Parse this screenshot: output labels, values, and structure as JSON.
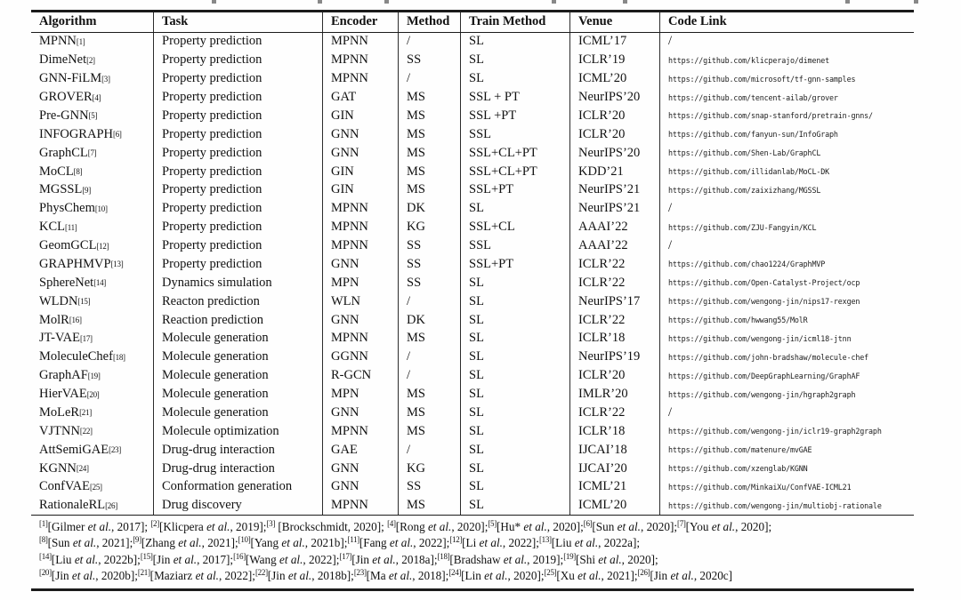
{
  "table": {
    "headers": [
      "Algorithm",
      "Task",
      "Encoder",
      "Method",
      "Train Method",
      "Venue",
      "Code Link"
    ],
    "rows": [
      {
        "algorithm": "MPNN",
        "ref": "[1]",
        "task": "Property prediction",
        "encoder": "MPNN",
        "method": "/",
        "train_method": "SL",
        "venue": "ICML’17",
        "code_link": "/"
      },
      {
        "algorithm": "DimeNet",
        "ref": "[2]",
        "task": "Property prediction",
        "encoder": "MPNN",
        "method": "SS",
        "train_method": "SL",
        "venue": "ICLR’19",
        "code_link": "https://github.com/klicperajo/dimenet"
      },
      {
        "algorithm": "GNN-FiLM",
        "ref": "[3]",
        "task": "Property prediction",
        "encoder": "MPNN",
        "method": "/",
        "train_method": "SL",
        "venue": "ICML’20",
        "code_link": "https://github.com/microsoft/tf-gnn-samples"
      },
      {
        "algorithm": "GROVER",
        "ref": "[4]",
        "task": "Property prediction",
        "encoder": "GAT",
        "method": "MS",
        "train_method": "SSL + PT",
        "venue": "NeurIPS’20",
        "code_link": "https://github.com/tencent-ailab/grover"
      },
      {
        "algorithm": "Pre-GNN",
        "ref": "[5]",
        "task": "Property prediction",
        "encoder": "GIN",
        "method": "MS",
        "train_method": "SSL +PT",
        "venue": "ICLR’20",
        "code_link": "https://github.com/snap-stanford/pretrain-gnns/"
      },
      {
        "algorithm": "INFOGRAPH",
        "ref": "[6]",
        "task": "Property prediction",
        "encoder": "GNN",
        "method": "MS",
        "train_method": "SSL",
        "venue": "ICLR’20",
        "code_link": "https://github.com/fanyun-sun/InfoGraph"
      },
      {
        "algorithm": "GraphCL",
        "ref": "[7]",
        "task": "Property prediction",
        "encoder": "GNN",
        "method": "MS",
        "train_method": "SSL+CL+PT",
        "venue": "NeurIPS’20",
        "code_link": "https://github.com/Shen-Lab/GraphCL"
      },
      {
        "algorithm": "MoCL",
        "ref": "[8]",
        "task": "Property prediction",
        "encoder": "GIN",
        "method": "MS",
        "train_method": "SSL+CL+PT",
        "venue": "KDD’21",
        "code_link": "https://github.com/illidanlab/MoCL-DK"
      },
      {
        "algorithm": "MGSSL",
        "ref": "[9]",
        "task": "Property prediction",
        "encoder": "GIN",
        "method": "MS",
        "train_method": "SSL+PT",
        "venue": "NeurIPS’21",
        "code_link": "https://github.com/zaixizhang/MGSSL"
      },
      {
        "algorithm": "PhysChem",
        "ref": "[10]",
        "task": "Property prediction",
        "encoder": "MPNN",
        "method": "DK",
        "train_method": "SL",
        "venue": "NeurIPS’21",
        "code_link": "/"
      },
      {
        "algorithm": "KCL",
        "ref": "[11]",
        "task": "Property prediction",
        "encoder": "MPNN",
        "method": "KG",
        "train_method": "SSL+CL",
        "venue": "AAAI’22",
        "code_link": "https://github.com/ZJU-Fangyin/KCL"
      },
      {
        "algorithm": "GeomGCL",
        "ref": "[12]",
        "task": "Property prediction",
        "encoder": "MPNN",
        "method": "SS",
        "train_method": "SSL",
        "venue": "AAAI’22",
        "code_link": "/"
      },
      {
        "algorithm": "GRAPHMVP",
        "ref": "[13]",
        "task": "Property prediction",
        "encoder": "GNN",
        "method": "SS",
        "train_method": "SSL+PT",
        "venue": "ICLR’22",
        "code_link": "https://github.com/chao1224/GraphMVP"
      },
      {
        "algorithm": "SphereNet",
        "ref": "[14]",
        "task": "Dynamics simulation",
        "encoder": "MPN",
        "method": "SS",
        "train_method": "SL",
        "venue": "ICLR’22",
        "code_link": "https://github.com/Open-Catalyst-Project/ocp"
      },
      {
        "algorithm": "WLDN",
        "ref": "[15]",
        "task": "Reacton prediction",
        "encoder": "WLN",
        "method": "/",
        "train_method": "SL",
        "venue": "NeurIPS’17",
        "code_link": "https://github.com/wengong-jin/nips17-rexgen"
      },
      {
        "algorithm": "MolR",
        "ref": "[16]",
        "task": "Reaction prediction",
        "encoder": "GNN",
        "method": "DK",
        "train_method": "SL",
        "venue": "ICLR’22",
        "code_link": "https://github.com/hwwang55/MolR"
      },
      {
        "algorithm": "JT-VAE",
        "ref": "[17]",
        "task": "Molecule generation",
        "encoder": "MPNN",
        "method": "MS",
        "train_method": "SL",
        "venue": "ICLR’18",
        "code_link": "https://github.com/wengong-jin/icml18-jtnn"
      },
      {
        "algorithm": "MoleculeChef",
        "ref": "[18]",
        "task": "Molecule generation",
        "encoder": "GGNN",
        "method": "/",
        "train_method": "SL",
        "venue": "NeurIPS’19",
        "code_link": "https://github.com/john-bradshaw/molecule-chef"
      },
      {
        "algorithm": "GraphAF",
        "ref": "[19]",
        "task": "Molecule generation",
        "encoder": "R-GCN",
        "method": "/",
        "train_method": "SL",
        "venue": "ICLR’20",
        "code_link": "https://github.com/DeepGraphLearning/GraphAF"
      },
      {
        "algorithm": "HierVAE",
        "ref": "[20]",
        "task": "Molecule generation",
        "encoder": "MPN",
        "method": "MS",
        "train_method": "SL",
        "venue": "IMLR’20",
        "code_link": "https://github.com/wengong-jin/hgraph2graph"
      },
      {
        "algorithm": "MoLeR",
        "ref": "[21]",
        "task": "Molecule generation",
        "encoder": "GNN",
        "method": "MS",
        "train_method": "SL",
        "venue": "ICLR’22",
        "code_link": "/"
      },
      {
        "algorithm": "VJTNN",
        "ref": "[22]",
        "task": "Molecule optimization",
        "encoder": "MPNN",
        "method": "MS",
        "train_method": "SL",
        "venue": "ICLR’18",
        "code_link": "https://github.com/wengong-jin/iclr19-graph2graph"
      },
      {
        "algorithm": "AttSemiGAE",
        "ref": "[23]",
        "task": "Drug-drug interaction",
        "encoder": "GAE",
        "method": "/",
        "train_method": "SL",
        "venue": "IJCAI’18",
        "code_link": "https://github.com/matenure/mvGAE"
      },
      {
        "algorithm": "KGNN",
        "ref": "[24]",
        "task": "Drug-drug interaction",
        "encoder": "GNN",
        "method": "KG",
        "train_method": "SL",
        "venue": "IJCAI’20",
        "code_link": "https://github.com/xzenglab/KGNN"
      },
      {
        "algorithm": "ConfVAE",
        "ref": "[25]",
        "task": "Conformation generation",
        "encoder": "GNN",
        "method": "SS",
        "train_method": "SL",
        "venue": "ICML’21",
        "code_link": "https://github.com/MinkaiXu/ConfVAE-ICML21"
      },
      {
        "algorithm": "RationaleRL",
        "ref": "[26]",
        "task": "Drug discovery",
        "encoder": "MPNN",
        "method": "MS",
        "train_method": "SL",
        "venue": "ICML’20",
        "code_link": "https://github.com/wengong-jin/multiobj-rationale"
      }
    ]
  },
  "footnotes": {
    "lines": [
      [
        {
          "ref": "[1]",
          "text": "[Gilmer et al., 2017]; "
        },
        {
          "ref": "[2]",
          "text": "[Klicpera et al., 2019];"
        },
        {
          "ref": "[3]",
          "text": " [Brockschmidt, 2020]; "
        },
        {
          "ref": "[4]",
          "text": "[Rong et al., 2020];"
        },
        {
          "ref": "[5]",
          "text": "[Hu* et al., 2020];"
        },
        {
          "ref": "[6]",
          "text": "[Sun et al., 2020];"
        },
        {
          "ref": "[7]",
          "text": "[You et al., 2020];"
        }
      ],
      [
        {
          "ref": "[8]",
          "text": "[Sun et al., 2021];"
        },
        {
          "ref": "[9]",
          "text": "[Zhang et al., 2021];"
        },
        {
          "ref": "[10]",
          "text": "[Yang et al., 2021b];"
        },
        {
          "ref": "[11]",
          "text": "[Fang et al., 2022];"
        },
        {
          "ref": "[12]",
          "text": "[Li et al., 2022];"
        },
        {
          "ref": "[13]",
          "text": "[Liu et al., 2022a];"
        }
      ],
      [
        {
          "ref": "[14]",
          "text": "[Liu et al., 2022b];"
        },
        {
          "ref": "[15]",
          "text": "[Jin et al., 2017];"
        },
        {
          "ref": "[16]",
          "text": "[Wang et al., 2022];"
        },
        {
          "ref": "[17]",
          "text": "[Jin et al., 2018a];"
        },
        {
          "ref": "[18]",
          "text": "[Bradshaw et al., 2019];"
        },
        {
          "ref": "[19]",
          "text": "[Shi et al., 2020];"
        }
      ],
      [
        {
          "ref": "[20]",
          "text": "[Jin et al., 2020b];"
        },
        {
          "ref": "[21]",
          "text": "[Maziarz et al., 2022];"
        },
        {
          "ref": "[22]",
          "text": "[Jin et al., 2018b];"
        },
        {
          "ref": "[23]",
          "text": "[Ma et al., 2018];"
        },
        {
          "ref": "[24]",
          "text": "[Lin et al., 2020];"
        },
        {
          "ref": "[25]",
          "text": "[Xu et al., 2021];"
        },
        {
          "ref": "[26]",
          "text": "[Jin et al., 2020c]"
        }
      ]
    ]
  }
}
